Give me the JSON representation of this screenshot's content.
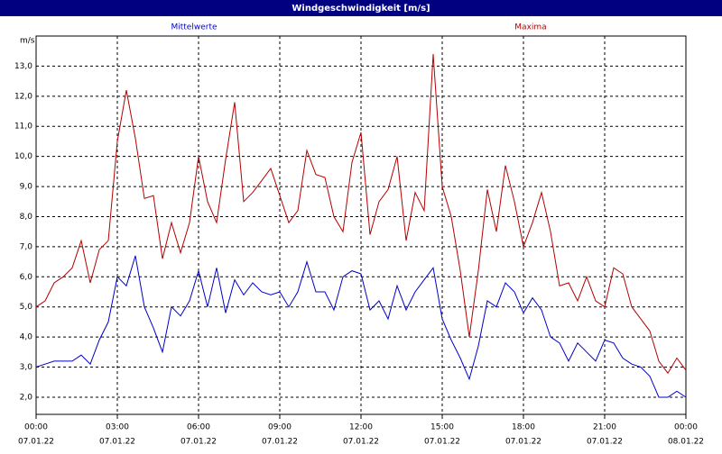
{
  "chart_data": {
    "type": "line",
    "title": "Windgeschwindigkeit [m/s]",
    "y_label": "m/s",
    "x": [
      0,
      20,
      40,
      60,
      80,
      100,
      120,
      140,
      160,
      180,
      200,
      220,
      240,
      260,
      280,
      300,
      320,
      340,
      360,
      380,
      400,
      420,
      440,
      460,
      480,
      500,
      520,
      540,
      560,
      580,
      600,
      620,
      640,
      660,
      680,
      700,
      720,
      740,
      760,
      780,
      800,
      820,
      840,
      860,
      880,
      900,
      920,
      940,
      960,
      980,
      1000,
      1020,
      1040,
      1060,
      1080,
      1100,
      1120,
      1140,
      1160,
      1180,
      1200,
      1220,
      1240,
      1260,
      1280,
      1300,
      1320,
      1340,
      1360,
      1380,
      1400,
      1420,
      1440
    ],
    "series": [
      {
        "name": "Mittelwerte",
        "color": "#0000c8",
        "values": [
          3.0,
          3.1,
          3.2,
          3.2,
          3.2,
          3.4,
          3.1,
          3.9,
          4.5,
          6.0,
          5.7,
          6.7,
          5.0,
          4.3,
          3.5,
          5.0,
          4.7,
          5.2,
          6.2,
          5.0,
          6.3,
          4.8,
          5.9,
          5.4,
          5.8,
          5.5,
          5.4,
          5.5,
          5.0,
          5.5,
          6.5,
          5.5,
          5.5,
          4.9,
          6.0,
          6.2,
          6.1,
          4.9,
          5.2,
          4.6,
          5.7,
          4.9,
          5.5,
          5.9,
          6.3,
          4.6,
          3.9,
          3.3,
          2.6,
          3.7,
          5.2,
          5.0,
          5.8,
          5.5,
          4.8,
          5.3,
          4.9,
          4.0,
          3.8,
          3.2,
          3.8,
          3.5,
          3.2,
          3.9,
          3.8,
          3.3,
          3.1,
          3.0,
          2.7,
          2.0,
          2.0,
          2.2,
          2.0
        ]
      },
      {
        "name": "Maxima",
        "color": "#b40000",
        "values": [
          5.0,
          5.2,
          5.8,
          6.0,
          6.3,
          7.2,
          5.8,
          6.9,
          7.2,
          10.5,
          12.2,
          10.6,
          8.6,
          8.7,
          6.6,
          7.8,
          6.8,
          7.8,
          10.0,
          8.5,
          7.8,
          9.9,
          11.8,
          8.5,
          8.8,
          9.2,
          9.6,
          8.7,
          7.8,
          8.2,
          10.2,
          9.4,
          9.3,
          8.0,
          7.5,
          9.8,
          10.8,
          7.4,
          8.5,
          8.9,
          10.0,
          7.2,
          8.8,
          8.2,
          13.4,
          9.0,
          8.0,
          6.2,
          4.0,
          6.2,
          8.9,
          7.5,
          9.7,
          8.5,
          7.0,
          7.8,
          8.8,
          7.5,
          5.7,
          5.8,
          5.2,
          6.0,
          5.2,
          5.0,
          6.3,
          6.1,
          5.0,
          4.6,
          4.2,
          3.2,
          2.8,
          3.3,
          2.9
        ]
      }
    ],
    "xlim": [
      0,
      1440
    ],
    "xticks": [
      {
        "value": 0,
        "label": "00:00"
      },
      {
        "value": 180,
        "label": "03:00"
      },
      {
        "value": 360,
        "label": "06:00"
      },
      {
        "value": 540,
        "label": "09:00"
      },
      {
        "value": 720,
        "label": "12:00"
      },
      {
        "value": 900,
        "label": "15:00"
      },
      {
        "value": 1080,
        "label": "18:00"
      },
      {
        "value": 1260,
        "label": "21:00"
      },
      {
        "value": 1440,
        "label": "00:00"
      }
    ],
    "xtick_dates": [
      "07.01.22",
      "07.01.22",
      "07.01.22",
      "07.01.22",
      "07.01.22",
      "07.01.22",
      "07.01.22",
      "07.01.22",
      "08.01.22"
    ],
    "ylim": [
      1.43,
      14.0
    ],
    "yticks": [
      {
        "value": 2,
        "label": "2,0"
      },
      {
        "value": 3,
        "label": "3,0"
      },
      {
        "value": 4,
        "label": "4,0"
      },
      {
        "value": 5,
        "label": "5,0"
      },
      {
        "value": 6,
        "label": "6,0"
      },
      {
        "value": 7,
        "label": "7,0"
      },
      {
        "value": 8,
        "label": "8,0"
      },
      {
        "value": 9,
        "label": "9,0"
      },
      {
        "value": 10,
        "label": "10,0"
      },
      {
        "value": 11,
        "label": "11,0"
      },
      {
        "value": 12,
        "label": "12,0"
      },
      {
        "value": 13,
        "label": "13,0"
      }
    ],
    "grid": true
  }
}
